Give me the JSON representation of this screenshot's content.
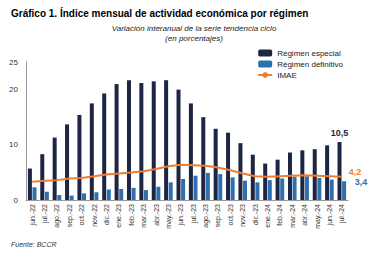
{
  "chart_data": {
    "type": "bar",
    "title": "Gráfico 1. Índice mensual de actividad económica por régimen",
    "subtitle": "Variación interanual de la serie tendencia ciclo\n(en porcentajes)",
    "source": "Fuente: BCCR",
    "categories": [
      "jun.-22",
      "jul.-22",
      "ago.-22",
      "sep.-22",
      "oct.-22",
      "nov.-22",
      "dic.-22",
      "ene.-23",
      "feb.-23",
      "mar.-23",
      "abr.-23",
      "may.-23",
      "jun.-23",
      "jul.-23",
      "ago.-23",
      "sep.-23",
      "oct.-23",
      "nov.-23",
      "dic.-23",
      "ene.-24",
      "feb.-24",
      "mar.-24",
      "abr.-24",
      "may.-24",
      "jun.-24",
      "jul.-24"
    ],
    "series": [
      {
        "name": "Régimen especial",
        "type": "bar",
        "color": "#1c2541",
        "values": [
          5.7,
          8.3,
          11.3,
          13.7,
          15.4,
          17.5,
          19.3,
          21.0,
          21.7,
          21.2,
          21.5,
          21.7,
          20.0,
          17.5,
          15.0,
          12.9,
          12.2,
          10.3,
          8.2,
          6.6,
          7.3,
          8.6,
          9.0,
          9.2,
          9.9,
          10.5
        ],
        "value_labels": [
          null,
          null,
          null,
          null,
          null,
          null,
          null,
          null,
          null,
          null,
          null,
          null,
          null,
          null,
          null,
          null,
          null,
          null,
          null,
          null,
          null,
          null,
          null,
          null,
          null,
          "10,5"
        ]
      },
      {
        "name": "Régimen definitivo",
        "type": "bar",
        "color": "#2f6fae",
        "values": [
          2.3,
          1.5,
          0.9,
          0.8,
          1.2,
          1.4,
          1.9,
          2.0,
          2.2,
          1.8,
          2.4,
          3.2,
          3.8,
          4.4,
          4.9,
          4.7,
          4.1,
          3.5,
          3.2,
          3.6,
          3.9,
          4.2,
          4.3,
          4.0,
          3.7,
          3.4
        ],
        "value_labels": [
          null,
          null,
          null,
          null,
          null,
          null,
          null,
          null,
          null,
          null,
          null,
          null,
          null,
          null,
          null,
          null,
          null,
          null,
          null,
          null,
          null,
          null,
          null,
          null,
          null,
          "3,4"
        ]
      },
      {
        "name": "IMAE",
        "type": "line",
        "color": "#ed7d31",
        "values": [
          3.3,
          3.5,
          3.6,
          3.9,
          4.0,
          4.3,
          4.6,
          4.8,
          5.0,
          5.2,
          5.6,
          6.1,
          6.4,
          6.3,
          6.2,
          5.9,
          5.4,
          4.8,
          4.3,
          4.2,
          4.3,
          4.4,
          4.5,
          4.4,
          4.3,
          4.2
        ],
        "value_labels": [
          null,
          null,
          null,
          null,
          null,
          null,
          null,
          null,
          null,
          null,
          null,
          null,
          null,
          null,
          null,
          null,
          null,
          null,
          null,
          null,
          null,
          null,
          null,
          null,
          null,
          "4,2"
        ]
      }
    ],
    "ylim": [
      0,
      25
    ],
    "yticks": [
      0,
      10,
      20
    ],
    "grid": false,
    "legend": "upper right",
    "data_labels": true
  }
}
